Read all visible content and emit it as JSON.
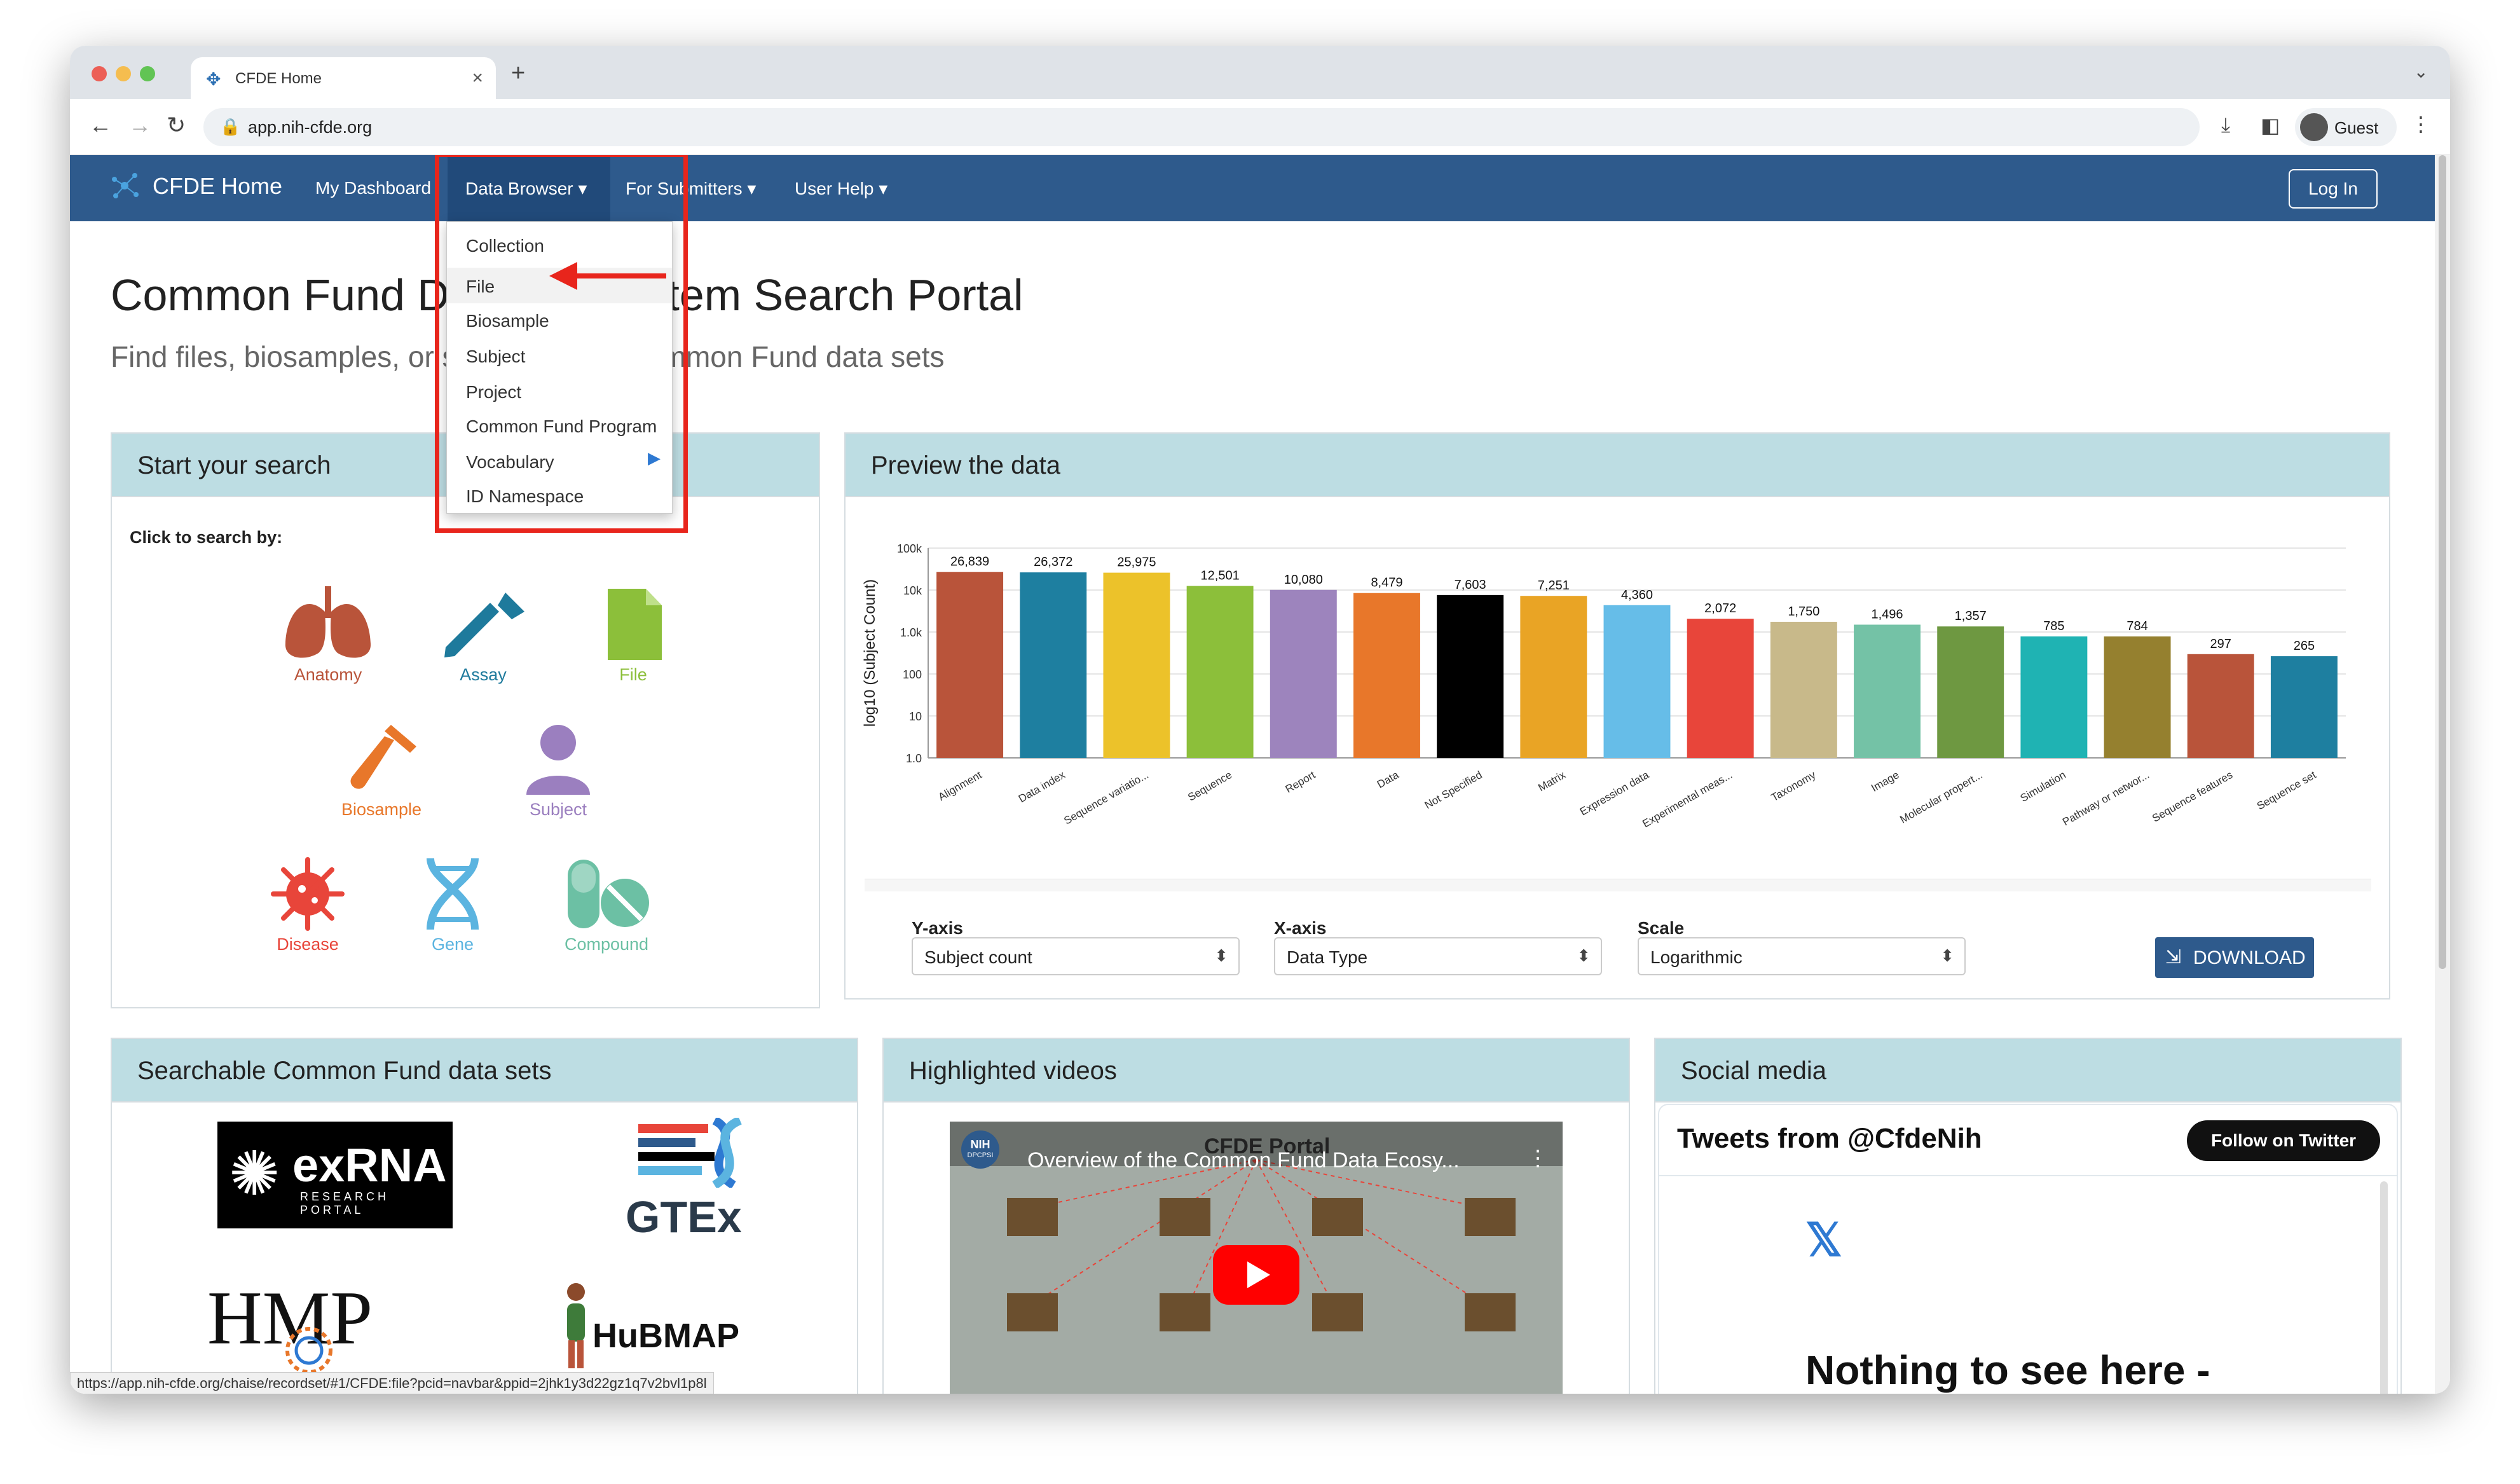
{
  "browser": {
    "tab_title": "CFDE Home",
    "tab_close": "×",
    "new_tab": "+",
    "url": "app.nih-cfde.org",
    "guest_label": "Guest",
    "status_url": "https://app.nih-cfde.org/chaise/recordset/#1/CFDE:file?pcid=navbar&ppid=2jhk1y3d22gz1q7v2bvl1p8l"
  },
  "navbar": {
    "brand": "CFDE Home",
    "items": [
      "My Dashboard",
      "Data Browser ▾",
      "For Submitters ▾",
      "User Help ▾"
    ],
    "login": "Log In"
  },
  "dropdown": {
    "items": [
      "Collection",
      "File",
      "Biosample",
      "Subject",
      "Project",
      "Common Fund Program",
      "Vocabulary",
      "ID Namespace"
    ],
    "submenu_arrow": "▶"
  },
  "hero": {
    "title": "Common Fund Data Ecosystem Search Portal",
    "subtitle": "Find files, biosamples, or subjects from Common Fund data sets"
  },
  "search_panel": {
    "title": "Start your search",
    "click_label": "Click to search by:",
    "categories": [
      {
        "label": "Anatomy",
        "color": "#b9543a",
        "icon": "lungs-icon"
      },
      {
        "label": "Assay",
        "color": "#1e7a9c",
        "icon": "dropper-icon"
      },
      {
        "label": "File",
        "color": "#8cbf3a",
        "icon": "file-icon"
      },
      {
        "label": "Biosample",
        "color": "#e8772a",
        "icon": "test-tube-icon"
      },
      {
        "label": "Subject",
        "color": "#9b7fbf",
        "icon": "person-icon"
      },
      {
        "label": "Disease",
        "color": "#e8453a",
        "icon": "virus-icon"
      },
      {
        "label": "Gene",
        "color": "#5bb4e0",
        "icon": "dna-icon"
      },
      {
        "label": "Compound",
        "color": "#6cc0a4",
        "icon": "pill-icon"
      }
    ]
  },
  "preview_panel": {
    "title": "Preview the data",
    "y_axis_label": "Y-axis",
    "x_axis_label": "X-axis",
    "scale_label": "Scale",
    "y_axis_value": "Subject count",
    "x_axis_value": "Data Type",
    "scale_value": "Logarithmic",
    "download": "DOWNLOAD",
    "caret": "⬍"
  },
  "chart_data": {
    "type": "bar",
    "ylabel": "log10 (Subject Count)",
    "yscale": "log",
    "ylim": [
      1,
      100000
    ],
    "y_ticks": [
      "1.0",
      "10",
      "100",
      "1.0k",
      "10k",
      "100k"
    ],
    "categories": [
      "Alignment",
      "Data index",
      "Sequence variatio...",
      "Sequence",
      "Report",
      "Data",
      "Not Specified",
      "Matrix",
      "Expression data",
      "Experimental meas...",
      "Taxonomy",
      "Image",
      "Molecular propert...",
      "Simulation",
      "Pathway or networ...",
      "Sequence features",
      "Sequence set"
    ],
    "values": [
      26839,
      26372,
      25975,
      12501,
      10080,
      8479,
      7603,
      7251,
      4360,
      2072,
      1750,
      1496,
      1357,
      785,
      784,
      297,
      265
    ],
    "data_labels": [
      "26,839",
      "26,372",
      "25,975",
      "12,501",
      "10,080",
      "8,479",
      "7,603",
      "7,251",
      "4,360",
      "2,072",
      "1,750",
      "1,496",
      "1,357",
      "785",
      "784",
      "297",
      "265"
    ],
    "colors": [
      "#b9543a",
      "#1e7fa0",
      "#ecc22a",
      "#8cbf3a",
      "#9d84bd",
      "#e8772a",
      "#000000",
      "#e9a425",
      "#66bde8",
      "#e8453a",
      "#c8b98a",
      "#74c2a6",
      "#6e9841",
      "#1fb3b3",
      "#95802f",
      "#b9543a",
      "#1e7fa0"
    ]
  },
  "datasets_panel": {
    "title": "Searchable Common Fund data sets",
    "logos": [
      "exRNA",
      "RESEARCH PORTAL",
      "GTEx",
      "HMP",
      "HuBMAP"
    ]
  },
  "videos_panel": {
    "title": "Highlighted videos",
    "video_title": "Overview of the Common Fund Data Ecosy...",
    "video_banner": "CFDE Portal",
    "channel_badge": "NIH",
    "channel_sub": "DPCPSI"
  },
  "social_panel": {
    "title": "Social media",
    "tweets_head": "Tweets from @CfdeNih",
    "follow": "Follow on Twitter",
    "x_logo": "𝕏",
    "nothing": "Nothing to see here -"
  }
}
